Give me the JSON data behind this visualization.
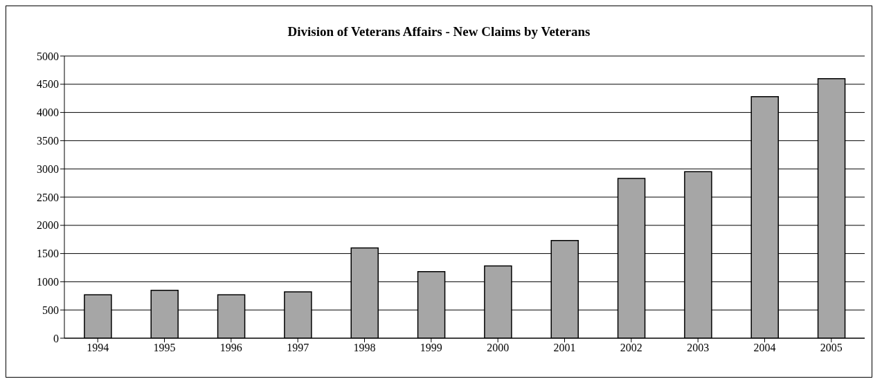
{
  "chart_data": {
    "type": "bar",
    "title": "Division of Veterans Affairs - New Claims by Veterans",
    "categories": [
      "1994",
      "1995",
      "1996",
      "1997",
      "1998",
      "1999",
      "2000",
      "2001",
      "2002",
      "2003",
      "2004",
      "2005"
    ],
    "values": [
      770,
      850,
      770,
      820,
      1600,
      1180,
      1280,
      1730,
      2830,
      2950,
      4280,
      4600
    ],
    "color": "#a6a6a6",
    "ylim": [
      0,
      5000
    ],
    "yticks": [
      0,
      500,
      1000,
      1500,
      2000,
      2500,
      3000,
      3500,
      4000,
      4500,
      5000
    ],
    "grid": "y"
  }
}
